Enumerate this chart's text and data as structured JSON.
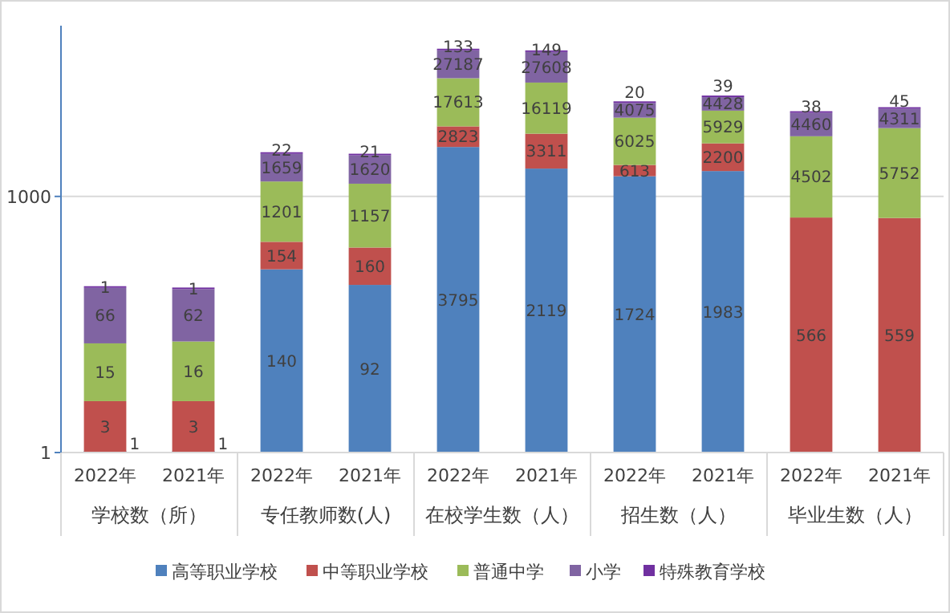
{
  "chart_data": {
    "type": "bar",
    "stacked": true,
    "log": true,
    "categories": [
      "2022年",
      "2021年",
      "2022年",
      "2021年",
      "2022年",
      "2021年",
      "2022年",
      "2021年",
      "2022年",
      "2021年"
    ],
    "annotations": [
      "学校数（所）",
      "专任教师数(人)",
      "在校学生数（人）",
      "招生数（人）",
      "毕业生数（人）"
    ],
    "series": [
      {
        "name": "高等职业学校",
        "color": "#4f81bd",
        "values": [
          1,
          1,
          140,
          92,
          3795,
          2119,
          1724,
          1983,
          null,
          null
        ]
      },
      {
        "name": "中等职业学校",
        "color": "#c0504d",
        "values": [
          3,
          3,
          154,
          160,
          2823,
          3311,
          613,
          2200,
          566,
          559
        ]
      },
      {
        "name": "普通中学",
        "color": "#9bbb59",
        "values": [
          15,
          16,
          1201,
          1157,
          17613,
          16119,
          6025,
          5929,
          4502,
          5752
        ]
      },
      {
        "name": "小学",
        "color": "#8064a2",
        "values": [
          66,
          62,
          1659,
          1620,
          27187,
          27608,
          4075,
          4428,
          4460,
          4311
        ]
      },
      {
        "name": "特殊教育学校",
        "color": "#7030a0",
        "values": [
          1,
          1,
          22,
          21,
          133,
          149,
          20,
          39,
          38,
          45
        ]
      }
    ],
    "ylim": [
      1,
      100000
    ],
    "yticks": [
      1,
      1000
    ],
    "grid": "y",
    "legend": "bottom",
    "data_labels": true
  }
}
